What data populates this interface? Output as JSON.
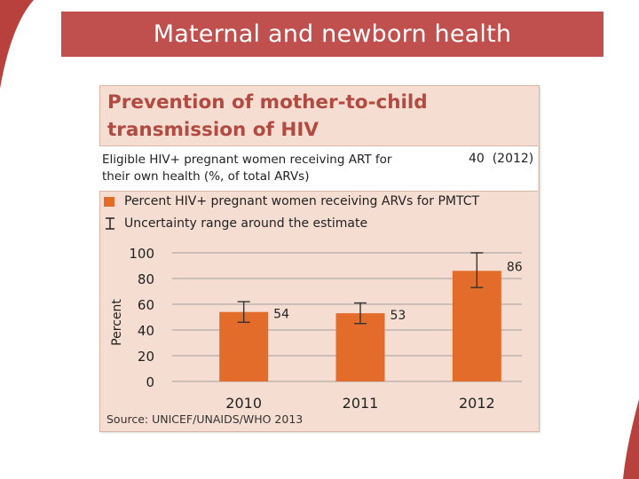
{
  "slide": {
    "title": "Maternal and newborn health"
  },
  "panel": {
    "title_line1": "Prevention of mother-to-child",
    "title_line2": "transmission of HIV",
    "info_label": "Eligible HIV+ pregnant women receiving ART for their own health (%, of total ARVs)",
    "info_value": "40  (2012)",
    "legend_bar": "Percent HIV+ pregnant women receiving ARVs for PMTCT",
    "legend_range": "Uncertainty range around the estimate",
    "source": "Source: UNICEF/UNAIDS/WHO 2013"
  },
  "colors": {
    "title_bar": "#c0504d",
    "bar": "#e46c2a",
    "panel_bg": "#f5ddd1",
    "panel_title": "#b14a40"
  },
  "chart_data": {
    "type": "bar",
    "categories": [
      "2010",
      "2011",
      "2012"
    ],
    "values": [
      54,
      53,
      86
    ],
    "error_low": [
      46,
      45,
      73
    ],
    "error_high": [
      62,
      61,
      100
    ],
    "data_labels": [
      "54",
      "53",
      "86"
    ],
    "ylabel": "Percent",
    "yticks": [
      "100",
      "80",
      "60",
      "40",
      "20",
      "0"
    ],
    "ylim": [
      0,
      100
    ],
    "grid": true
  }
}
